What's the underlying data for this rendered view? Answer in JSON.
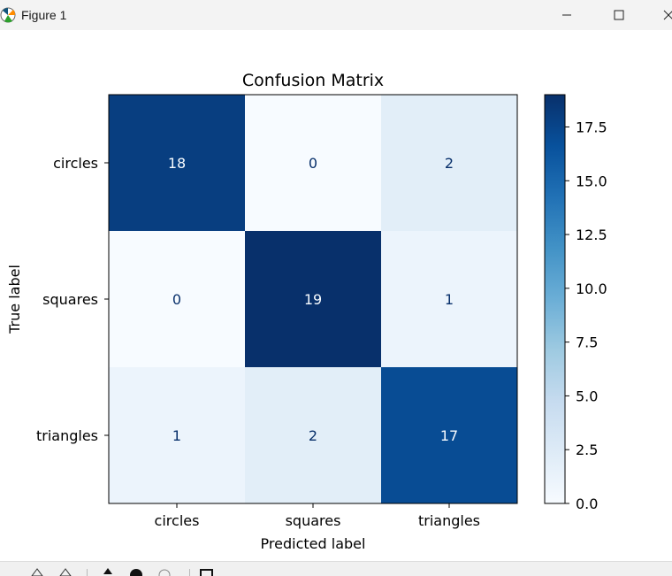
{
  "window": {
    "title": "Figure 1"
  },
  "chart_data": {
    "type": "heatmap",
    "title": "Confusion Matrix",
    "xlabel": "Predicted label",
    "ylabel": "True label",
    "x_categories": [
      "circles",
      "squares",
      "triangles"
    ],
    "y_categories": [
      "circles",
      "squares",
      "triangles"
    ],
    "values": [
      [
        18,
        0,
        2
      ],
      [
        0,
        19,
        1
      ],
      [
        1,
        2,
        17
      ]
    ],
    "colormap": "Blues",
    "vmin": 0,
    "vmax": 19,
    "colorbar_ticks": [
      0.0,
      2.5,
      5.0,
      7.5,
      10.0,
      12.5,
      15.0,
      17.5
    ],
    "colorbar_tick_labels": [
      "0.0",
      "2.5",
      "5.0",
      "7.5",
      "10.0",
      "12.5",
      "15.0",
      "17.5"
    ]
  },
  "colors": {
    "low": "#f7fbff",
    "high": "#08306b",
    "text_light": "#f7fbff",
    "text_dark": "#08306b"
  }
}
